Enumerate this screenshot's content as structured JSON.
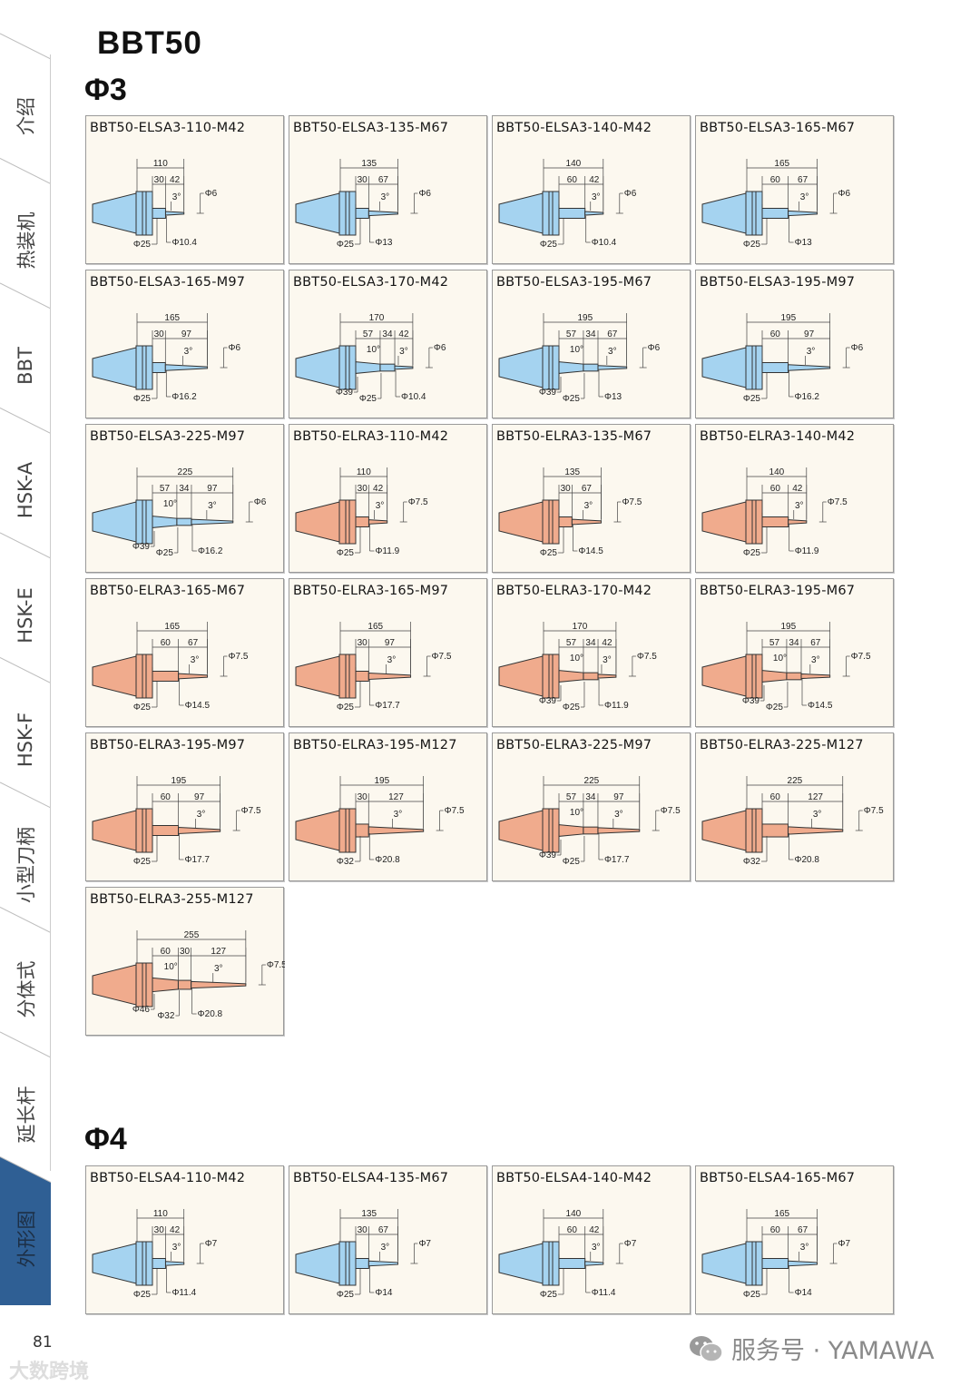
{
  "sidebar": {
    "tabs": [
      {
        "label": "介绍",
        "active": false
      },
      {
        "label": "热装机",
        "active": false
      },
      {
        "label": "BBT",
        "active": false
      },
      {
        "label": "HSK-A",
        "active": false
      },
      {
        "label": "HSK-E",
        "active": false
      },
      {
        "label": "HSK-F",
        "active": false
      },
      {
        "label": "小型刀柄",
        "active": false
      },
      {
        "label": "分体式",
        "active": false
      },
      {
        "label": "延长杆",
        "active": false
      },
      {
        "label": "外形图",
        "active": true
      }
    ],
    "active_color": "#2f5f94"
  },
  "page": {
    "title": "BBT50",
    "page_number": "81",
    "watermark": "大数跨境",
    "brand": "服务号 · YAMAWA"
  },
  "colors": {
    "blue": "#a5d3f0",
    "salmon": "#f0ab8d",
    "card_bg": "#fcf8ef"
  },
  "sections": [
    {
      "heading": "Φ3",
      "cards": [
        {
          "title": "BBT50-ELSA3-110-M42",
          "color": "blue",
          "total": "110",
          "segs": [
            "30",
            "42"
          ],
          "angles": [
            "3°"
          ],
          "tip": "Φ6",
          "dias": [
            "Φ25",
            "Φ10.4"
          ]
        },
        {
          "title": "BBT50-ELSA3-135-M67",
          "color": "blue",
          "total": "135",
          "segs": [
            "30",
            "67"
          ],
          "angles": [
            "3°"
          ],
          "tip": "Φ6",
          "dias": [
            "Φ25",
            "Φ13"
          ]
        },
        {
          "title": "BBT50-ELSA3-140-M42",
          "color": "blue",
          "total": "140",
          "segs": [
            "60",
            "42"
          ],
          "angles": [
            "3°"
          ],
          "tip": "Φ6",
          "dias": [
            "Φ25",
            "Φ10.4"
          ]
        },
        {
          "title": "BBT50-ELSA3-165-M67",
          "color": "blue",
          "total": "165",
          "segs": [
            "60",
            "67"
          ],
          "angles": [
            "3°"
          ],
          "tip": "Φ6",
          "dias": [
            "Φ25",
            "Φ13"
          ]
        },
        {
          "title": "BBT50-ELSA3-165-M97",
          "color": "blue",
          "total": "165",
          "segs": [
            "30",
            "97"
          ],
          "angles": [
            "3°"
          ],
          "tip": "Φ6",
          "dias": [
            "Φ25",
            "Φ16.2"
          ]
        },
        {
          "title": "BBT50-ELSA3-170-M42",
          "color": "blue",
          "total": "170",
          "segs": [
            "57",
            "34",
            "42"
          ],
          "angles": [
            "10°",
            "3°"
          ],
          "tip": "Φ6",
          "dias": [
            "Φ39",
            "Φ25",
            "Φ10.4"
          ]
        },
        {
          "title": "BBT50-ELSA3-195-M67",
          "color": "blue",
          "total": "195",
          "segs": [
            "57",
            "34",
            "67"
          ],
          "angles": [
            "10°",
            "3°"
          ],
          "tip": "Φ6",
          "dias": [
            "Φ39",
            "Φ25",
            "Φ13"
          ]
        },
        {
          "title": "BBT50-ELSA3-195-M97",
          "color": "blue",
          "total": "195",
          "segs": [
            "60",
            "97"
          ],
          "angles": [
            "3°"
          ],
          "tip": "Φ6",
          "dias": [
            "Φ25",
            "Φ16.2"
          ]
        },
        {
          "title": "BBT50-ELSA3-225-M97",
          "color": "blue",
          "total": "225",
          "segs": [
            "57",
            "34",
            "97"
          ],
          "angles": [
            "10°",
            "3°"
          ],
          "tip": "Φ6",
          "dias": [
            "Φ39",
            "Φ25",
            "Φ16.2"
          ]
        },
        {
          "title": "BBT50-ELRA3-110-M42",
          "color": "salmon",
          "total": "110",
          "segs": [
            "30",
            "42"
          ],
          "angles": [
            "3°"
          ],
          "tip": "Φ7.5",
          "dias": [
            "Φ25",
            "Φ11.9"
          ]
        },
        {
          "title": "BBT50-ELRA3-135-M67",
          "color": "salmon",
          "total": "135",
          "segs": [
            "30",
            "67"
          ],
          "angles": [
            "3°"
          ],
          "tip": "Φ7.5",
          "dias": [
            "Φ25",
            "Φ14.5"
          ]
        },
        {
          "title": "BBT50-ELRA3-140-M42",
          "color": "salmon",
          "total": "140",
          "segs": [
            "60",
            "42"
          ],
          "angles": [
            "3°"
          ],
          "tip": "Φ7.5",
          "dias": [
            "Φ25",
            "Φ11.9"
          ]
        },
        {
          "title": "BBT50-ELRA3-165-M67",
          "color": "salmon",
          "total": "165",
          "segs": [
            "60",
            "67"
          ],
          "angles": [
            "3°"
          ],
          "tip": "Φ7.5",
          "dias": [
            "Φ25",
            "Φ14.5"
          ]
        },
        {
          "title": "BBT50-ELRA3-165-M97",
          "color": "salmon",
          "total": "165",
          "segs": [
            "30",
            "97"
          ],
          "angles": [
            "3°"
          ],
          "tip": "Φ7.5",
          "dias": [
            "Φ25",
            "Φ17.7"
          ]
        },
        {
          "title": "BBT50-ELRA3-170-M42",
          "color": "salmon",
          "total": "170",
          "segs": [
            "57",
            "34",
            "42"
          ],
          "angles": [
            "10°",
            "3°"
          ],
          "tip": "Φ7.5",
          "dias": [
            "Φ39",
            "Φ25",
            "Φ11.9"
          ]
        },
        {
          "title": "BBT50-ELRA3-195-M67",
          "color": "salmon",
          "total": "195",
          "segs": [
            "57",
            "34",
            "67"
          ],
          "angles": [
            "10°",
            "3°"
          ],
          "tip": "Φ7.5",
          "dias": [
            "Φ39",
            "Φ25",
            "Φ14.5"
          ]
        },
        {
          "title": "BBT50-ELRA3-195-M97",
          "color": "salmon",
          "total": "195",
          "segs": [
            "60",
            "97"
          ],
          "angles": [
            "3°"
          ],
          "tip": "Φ7.5",
          "dias": [
            "Φ25",
            "Φ17.7"
          ]
        },
        {
          "title": "BBT50-ELRA3-195-M127",
          "color": "salmon",
          "total": "195",
          "segs": [
            "30",
            "127"
          ],
          "angles": [
            "3°"
          ],
          "tip": "Φ7.5",
          "dias": [
            "Φ32",
            "Φ20.8"
          ]
        },
        {
          "title": "BBT50-ELRA3-225-M97",
          "color": "salmon",
          "total": "225",
          "segs": [
            "57",
            "34",
            "97"
          ],
          "angles": [
            "10°",
            "3°"
          ],
          "tip": "Φ7.5",
          "dias": [
            "Φ39",
            "Φ25",
            "Φ17.7"
          ]
        },
        {
          "title": "BBT50-ELRA3-225-M127",
          "color": "salmon",
          "total": "225",
          "segs": [
            "60",
            "127"
          ],
          "angles": [
            "3°"
          ],
          "tip": "Φ7.5",
          "dias": [
            "Φ32",
            "Φ20.8"
          ]
        },
        {
          "title": "BBT50-ELRA3-255-M127",
          "color": "salmon",
          "total": "255",
          "segs": [
            "60",
            "30",
            "127"
          ],
          "angles": [
            "10°",
            "3°"
          ],
          "tip": "Φ7.5",
          "dias": [
            "Φ46",
            "Φ32",
            "Φ20.8"
          ]
        }
      ]
    },
    {
      "heading": "Φ4",
      "cards": [
        {
          "title": "BBT50-ELSA4-110-M42",
          "color": "blue",
          "total": "110",
          "segs": [
            "30",
            "42"
          ],
          "angles": [
            "3°"
          ],
          "tip": "Φ7",
          "dias": [
            "Φ25",
            "Φ11.4"
          ]
        },
        {
          "title": "BBT50-ELSA4-135-M67",
          "color": "blue",
          "total": "135",
          "segs": [
            "30",
            "67"
          ],
          "angles": [
            "3°"
          ],
          "tip": "Φ7",
          "dias": [
            "Φ25",
            "Φ14"
          ]
        },
        {
          "title": "BBT50-ELSA4-140-M42",
          "color": "blue",
          "total": "140",
          "segs": [
            "60",
            "42"
          ],
          "angles": [
            "3°"
          ],
          "tip": "Φ7",
          "dias": [
            "Φ25",
            "Φ11.4"
          ]
        },
        {
          "title": "BBT50-ELSA4-165-M67",
          "color": "blue",
          "total": "165",
          "segs": [
            "60",
            "67"
          ],
          "angles": [
            "3°"
          ],
          "tip": "Φ7",
          "dias": [
            "Φ25",
            "Φ14"
          ]
        }
      ]
    }
  ]
}
